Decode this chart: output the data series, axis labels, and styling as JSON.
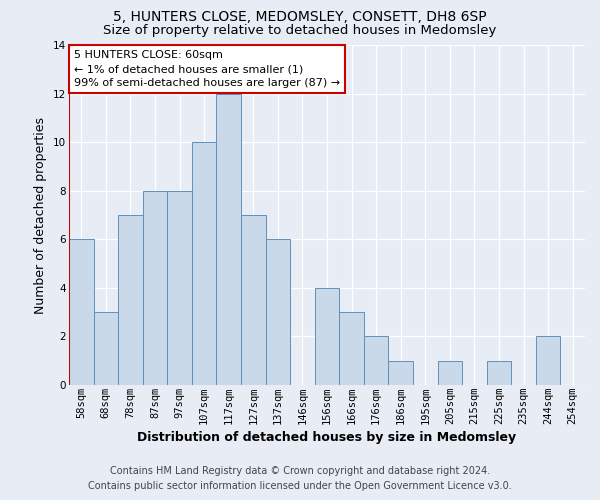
{
  "title": "5, HUNTERS CLOSE, MEDOMSLEY, CONSETT, DH8 6SP",
  "subtitle": "Size of property relative to detached houses in Medomsley",
  "xlabel": "Distribution of detached houses by size in Medomsley",
  "ylabel": "Number of detached properties",
  "footnote1": "Contains HM Land Registry data © Crown copyright and database right 2024.",
  "footnote2": "Contains public sector information licensed under the Open Government Licence v3.0.",
  "annotation_line1": "5 HUNTERS CLOSE: 60sqm",
  "annotation_line2": "← 1% of detached houses are smaller (1)",
  "annotation_line3": "99% of semi-detached houses are larger (87) →",
  "categories": [
    "58sqm",
    "68sqm",
    "78sqm",
    "87sqm",
    "97sqm",
    "107sqm",
    "117sqm",
    "127sqm",
    "137sqm",
    "146sqm",
    "156sqm",
    "166sqm",
    "176sqm",
    "186sqm",
    "195sqm",
    "205sqm",
    "215sqm",
    "225sqm",
    "235sqm",
    "244sqm",
    "254sqm"
  ],
  "values": [
    6,
    3,
    7,
    8,
    8,
    10,
    12,
    7,
    6,
    0,
    4,
    3,
    2,
    1,
    0,
    1,
    0,
    1,
    0,
    2,
    0
  ],
  "bar_color": "#c9d9ea",
  "bar_edge_color": "#6090bb",
  "ylim": [
    0,
    14
  ],
  "yticks": [
    0,
    2,
    4,
    6,
    8,
    10,
    12,
    14
  ],
  "bg_color": "#e8edf5",
  "plot_bg_color": "#e8edf5",
  "annotation_box_color": "#ffffff",
  "annotation_box_edge": "#cc0000",
  "grid_color": "#ffffff",
  "title_fontsize": 10,
  "subtitle_fontsize": 9.5,
  "label_fontsize": 9,
  "tick_fontsize": 7.5,
  "annotation_fontsize": 8,
  "footnote_fontsize": 7
}
